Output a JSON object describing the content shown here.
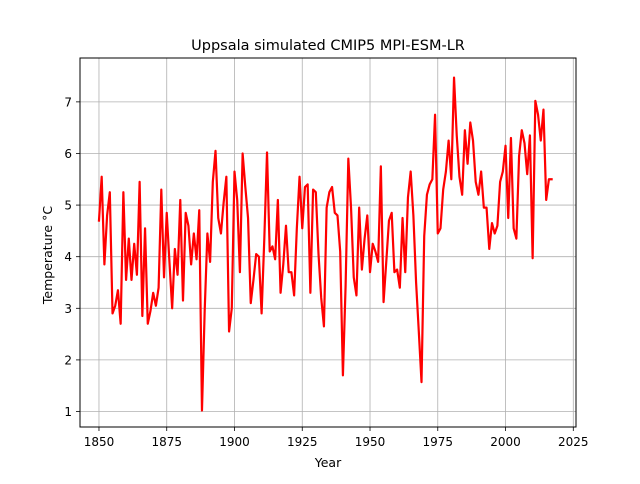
{
  "chart_data": {
    "type": "line",
    "title": "Uppsala simulated CMIP5 MPI-ESM-LR",
    "xlabel": "Year",
    "ylabel": "Temperature °C",
    "xlim": [
      1843,
      2026
    ],
    "ylim": [
      0.7,
      7.85
    ],
    "x_ticks": [
      1850,
      1875,
      1900,
      1925,
      1950,
      1975,
      2000,
      2025
    ],
    "y_ticks": [
      1,
      2,
      3,
      4,
      5,
      6,
      7
    ],
    "grid": true,
    "series": [
      {
        "color": "#ff0000",
        "x": [
          1850,
          1851,
          1852,
          1853,
          1854,
          1855,
          1856,
          1857,
          1858,
          1859,
          1860,
          1861,
          1862,
          1863,
          1864,
          1865,
          1866,
          1867,
          1868,
          1869,
          1870,
          1871,
          1872,
          1873,
          1874,
          1875,
          1876,
          1877,
          1878,
          1879,
          1880,
          1881,
          1882,
          1883,
          1884,
          1885,
          1886,
          1887,
          1888,
          1889,
          1890,
          1891,
          1892,
          1893,
          1894,
          1895,
          1896,
          1897,
          1898,
          1899,
          1900,
          1901,
          1902,
          1903,
          1904,
          1905,
          1906,
          1907,
          1908,
          1909,
          1910,
          1911,
          1912,
          1913,
          1914,
          1915,
          1916,
          1917,
          1918,
          1919,
          1920,
          1921,
          1922,
          1923,
          1924,
          1925,
          1926,
          1927,
          1928,
          1929,
          1930,
          1931,
          1932,
          1933,
          1934,
          1935,
          1936,
          1937,
          1938,
          1939,
          1940,
          1941,
          1942,
          1943,
          1944,
          1945,
          1946,
          1947,
          1948,
          1949,
          1950,
          1951,
          1952,
          1953,
          1954,
          1955,
          1956,
          1957,
          1958,
          1959,
          1960,
          1961,
          1962,
          1963,
          1964,
          1965,
          1966,
          1967,
          1968,
          1969,
          1970,
          1971,
          1972,
          1973,
          1974,
          1975,
          1976,
          1977,
          1978,
          1979,
          1980,
          1981,
          1982,
          1983,
          1984,
          1985,
          1986,
          1987,
          1988,
          1989,
          1990,
          1991,
          1992,
          1993,
          1994,
          1995,
          1996,
          1997,
          1998,
          1999,
          2000,
          2001,
          2002,
          2003,
          2004,
          2005,
          2006,
          2007,
          2008,
          2009,
          2010,
          2011,
          2012,
          2013,
          2014,
          2015,
          2016,
          2017
        ],
        "y": [
          4.7,
          5.55,
          3.85,
          4.8,
          5.25,
          2.9,
          3.05,
          3.35,
          2.7,
          5.25,
          3.55,
          4.35,
          3.55,
          4.25,
          3.65,
          5.45,
          2.85,
          4.55,
          2.7,
          2.95,
          3.3,
          3.05,
          3.4,
          5.3,
          3.6,
          4.85,
          3.9,
          3.0,
          4.15,
          3.65,
          5.1,
          3.15,
          4.85,
          4.6,
          3.85,
          4.45,
          3.95,
          4.9,
          1.02,
          2.95,
          4.45,
          3.9,
          5.45,
          6.05,
          4.75,
          4.45,
          5.05,
          5.55,
          2.55,
          3.0,
          5.65,
          5.1,
          3.7,
          6.0,
          5.35,
          4.75,
          3.1,
          3.55,
          4.05,
          4.0,
          2.9,
          4.35,
          6.02,
          4.1,
          4.2,
          3.95,
          5.1,
          3.3,
          3.85,
          4.6,
          3.7,
          3.7,
          3.25,
          4.55,
          5.55,
          4.55,
          5.35,
          5.4,
          3.3,
          5.3,
          5.25,
          4.05,
          3.2,
          2.65,
          4.95,
          5.25,
          5.35,
          4.85,
          4.8,
          4.1,
          1.7,
          3.45,
          5.9,
          4.95,
          3.6,
          3.25,
          4.95,
          3.75,
          4.35,
          4.8,
          3.7,
          4.25,
          4.1,
          3.9,
          5.75,
          3.12,
          3.9,
          4.7,
          4.85,
          3.7,
          3.75,
          3.4,
          4.75,
          3.7,
          5.15,
          5.65,
          4.8,
          3.5,
          2.55,
          1.57,
          4.4,
          5.2,
          5.4,
          5.5,
          6.75,
          4.45,
          4.55,
          5.3,
          5.65,
          6.25,
          5.5,
          7.47,
          6.35,
          5.55,
          5.2,
          6.45,
          5.8,
          6.6,
          6.25,
          5.45,
          5.2,
          5.65,
          4.95,
          4.95,
          4.15,
          4.65,
          4.45,
          4.6,
          5.45,
          5.65,
          6.15,
          4.75,
          6.3,
          4.55,
          4.35,
          5.95,
          6.45,
          6.2,
          5.6,
          6.35,
          3.97,
          7.02,
          6.75,
          6.25,
          6.85,
          5.1,
          5.5,
          5.5
        ]
      }
    ]
  }
}
